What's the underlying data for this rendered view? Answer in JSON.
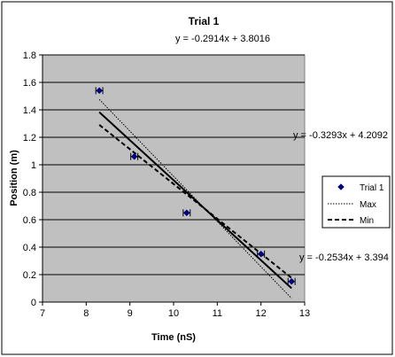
{
  "chart_data": {
    "type": "scatter",
    "title": "Trial 1",
    "xlabel": "Time (nS)",
    "ylabel": "Position (m)",
    "xlim": [
      7,
      13
    ],
    "ylim": [
      0,
      1.8
    ],
    "x_ticks": [
      "7",
      "8",
      "9",
      "10",
      "11",
      "12",
      "13"
    ],
    "y_ticks": [
      "0",
      "0.2",
      "0.4",
      "0.6",
      "0.8",
      "1",
      "1.2",
      "1.4",
      "1.6",
      "1.8"
    ],
    "grid": "horizontal",
    "plot_background": "#c0c0c0",
    "legend_position": "right",
    "series": [
      {
        "name": "Trial 1",
        "kind": "points",
        "color": "#000080",
        "marker": "diamond",
        "x": [
          8.3,
          9.1,
          10.3,
          12.0,
          12.7
        ],
        "y": [
          1.54,
          1.06,
          0.65,
          0.35,
          0.15
        ],
        "x_error": 0.08
      },
      {
        "name": "",
        "kind": "trendline",
        "style": "solid",
        "slope": -0.2914,
        "intercept": 3.8016,
        "x_range": [
          8.3,
          12.7
        ],
        "equation": "y = -0.2914x + 3.8016"
      },
      {
        "name": "Max",
        "kind": "line",
        "style": "dotted",
        "slope": -0.3293,
        "intercept": 4.2092,
        "x_range": [
          8.3,
          12.7
        ],
        "equation": "y = -0.3293x + 4.2092"
      },
      {
        "name": "Min",
        "kind": "line",
        "style": "dashed",
        "slope": -0.2534,
        "intercept": 3.394,
        "x_range": [
          8.3,
          12.7
        ],
        "equation": "y = -0.2534x + 3.394"
      }
    ],
    "legend": [
      "Trial 1",
      "Max",
      "Min"
    ]
  }
}
